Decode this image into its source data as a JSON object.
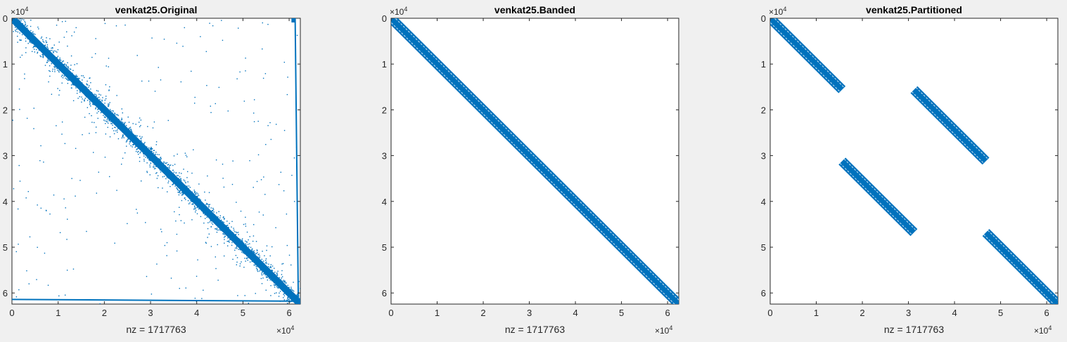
{
  "chart_data": [
    {
      "type": "spy",
      "title": "venkat25.Original",
      "xlabel": "nz = 1717763",
      "xlim": [
        0,
        62424
      ],
      "ylim": [
        0,
        62424
      ],
      "y_reversed": true,
      "xticks": [
        0,
        10000,
        20000,
        30000,
        40000,
        50000,
        60000
      ],
      "yticks": [
        0,
        10000,
        20000,
        30000,
        40000,
        50000,
        60000
      ],
      "tick_labels": [
        "0",
        "1",
        "2",
        "3",
        "4",
        "5",
        "6"
      ],
      "exponent_base": "×10",
      "exponent_power": "4",
      "marker_color": "#0072bd",
      "pattern": "main diagonal band with scattered off-diagonal entries, dense last rows and last columns",
      "band_segments": [
        {
          "rows": [
            0,
            62424
          ],
          "cols": [
            0,
            62424
          ]
        }
      ]
    },
    {
      "type": "spy",
      "title": "venkat25.Banded",
      "xlabel": "nz = 1717763",
      "xlim": [
        0,
        62424
      ],
      "ylim": [
        0,
        62424
      ],
      "y_reversed": true,
      "xticks": [
        0,
        10000,
        20000,
        30000,
        40000,
        50000,
        60000
      ],
      "yticks": [
        0,
        10000,
        20000,
        30000,
        40000,
        50000,
        60000
      ],
      "tick_labels": [
        "0",
        "1",
        "2",
        "3",
        "4",
        "5",
        "6"
      ],
      "exponent_base": "×10",
      "exponent_power": "4",
      "marker_color": "#0072bd",
      "pattern": "single banded diagonal",
      "band_segments": [
        {
          "rows": [
            0,
            62424
          ],
          "cols": [
            0,
            62424
          ]
        }
      ]
    },
    {
      "type": "spy",
      "title": "venkat25.Partitioned",
      "xlabel": "nz = 1717763",
      "xlim": [
        0,
        62424
      ],
      "ylim": [
        0,
        62424
      ],
      "y_reversed": true,
      "xticks": [
        0,
        10000,
        20000,
        30000,
        40000,
        50000,
        60000
      ],
      "yticks": [
        0,
        10000,
        20000,
        30000,
        40000,
        50000,
        60000
      ],
      "tick_labels": [
        "0",
        "1",
        "2",
        "3",
        "4",
        "5",
        "6"
      ],
      "exponent_base": "×10",
      "exponent_power": "4",
      "marker_color": "#0072bd",
      "pattern": "four diagonal band blocks",
      "band_segments": [
        {
          "rows": [
            0,
            15600
          ],
          "cols": [
            0,
            15600
          ]
        },
        {
          "rows": [
            15600,
            31200
          ],
          "cols": [
            31200,
            46800
          ]
        },
        {
          "rows": [
            31200,
            46800
          ],
          "cols": [
            15600,
            31200
          ]
        },
        {
          "rows": [
            46800,
            62424
          ],
          "cols": [
            46800,
            62424
          ]
        }
      ]
    }
  ]
}
